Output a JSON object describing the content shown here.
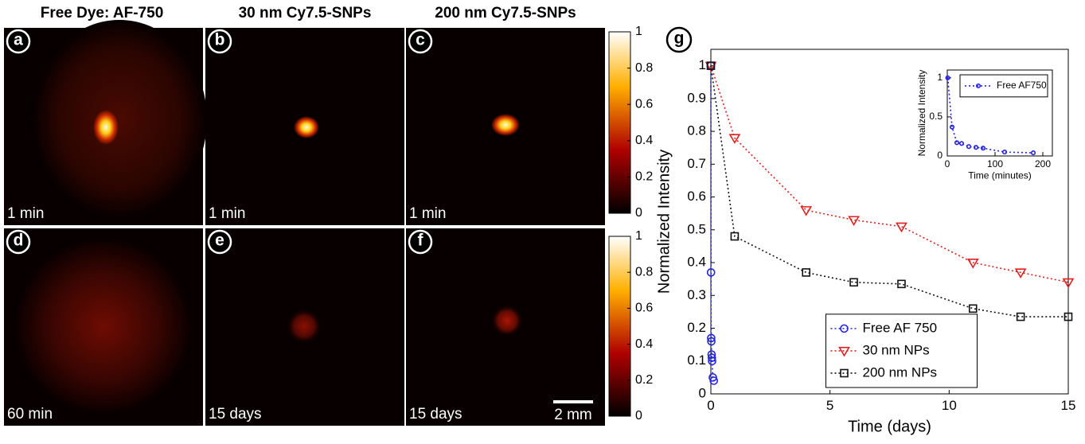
{
  "columns": [
    "Free Dye: AF-750",
    "30 nm Cy7.5-SNPs",
    "200 nm Cy7.5-SNPs"
  ],
  "panels": [
    {
      "letter": "a",
      "time": "1 min"
    },
    {
      "letter": "b",
      "time": "1 min"
    },
    {
      "letter": "c",
      "time": "1 min"
    },
    {
      "letter": "d",
      "time": "60 min"
    },
    {
      "letter": "e",
      "time": "15 days"
    },
    {
      "letter": "f",
      "time": "15 days"
    }
  ],
  "scale_bar": "2 mm",
  "colorbars": [
    {
      "ylim": [
        0,
        1
      ],
      "yticks": [
        0,
        0.2,
        0.4,
        0.6,
        0.8,
        1
      ]
    },
    {
      "ylim": [
        0,
        1
      ],
      "yticks": [
        0,
        0.2,
        0.4,
        0.6,
        0.8,
        1
      ]
    }
  ],
  "chart_data": [
    {
      "type": "line",
      "label": "g",
      "x_label": "Time (days)",
      "y_label": "Normalized Intensity",
      "xlim": [
        0,
        15
      ],
      "xticks": [
        0,
        5,
        10,
        15
      ],
      "ylim": [
        0,
        1.05
      ],
      "yticks": [
        0,
        0.1,
        0.2,
        0.3,
        0.4,
        0.5,
        0.6,
        0.7,
        0.8,
        0.9,
        1
      ],
      "legend": "lower center",
      "series": [
        {
          "name": "Free AF 750",
          "color": "#2424e0",
          "marker": "circle",
          "x": [
            0.0007,
            0.007,
            0.014,
            0.021,
            0.031,
            0.042,
            0.052,
            0.083,
            0.125
          ],
          "values": [
            1,
            0.37,
            0.17,
            0.16,
            0.12,
            0.11,
            0.1,
            0.05,
            0.04
          ]
        },
        {
          "name": "30 nm NPs",
          "color": "#e02020",
          "marker": "triangle",
          "x": [
            0,
            1,
            4,
            6,
            8,
            11,
            13,
            15
          ],
          "values": [
            1,
            0.78,
            0.56,
            0.53,
            0.51,
            0.4,
            0.37,
            0.34
          ]
        },
        {
          "name": "200 nm NPs",
          "color": "#111111",
          "marker": "square",
          "x": [
            0,
            1,
            4,
            6,
            8,
            11,
            13,
            15
          ],
          "values": [
            1,
            0.48,
            0.37,
            0.34,
            0.335,
            0.26,
            0.235,
            0.235
          ]
        }
      ]
    },
    {
      "type": "line",
      "x_label": "Time (minutes)",
      "y_label": "Normalized Intensity",
      "xlim": [
        0,
        220
      ],
      "xticks": [
        0,
        100,
        200
      ],
      "ylim": [
        0,
        1.1
      ],
      "yticks": [
        0,
        0.5,
        1
      ],
      "legend": "upper right",
      "series": [
        {
          "name": "Free AF750",
          "color": "#2424e0",
          "marker": "circle",
          "x": [
            1,
            10,
            20,
            30,
            45,
            60,
            75,
            120,
            180
          ],
          "values": [
            1,
            0.37,
            0.17,
            0.16,
            0.12,
            0.11,
            0.1,
            0.05,
            0.04
          ]
        }
      ]
    }
  ]
}
